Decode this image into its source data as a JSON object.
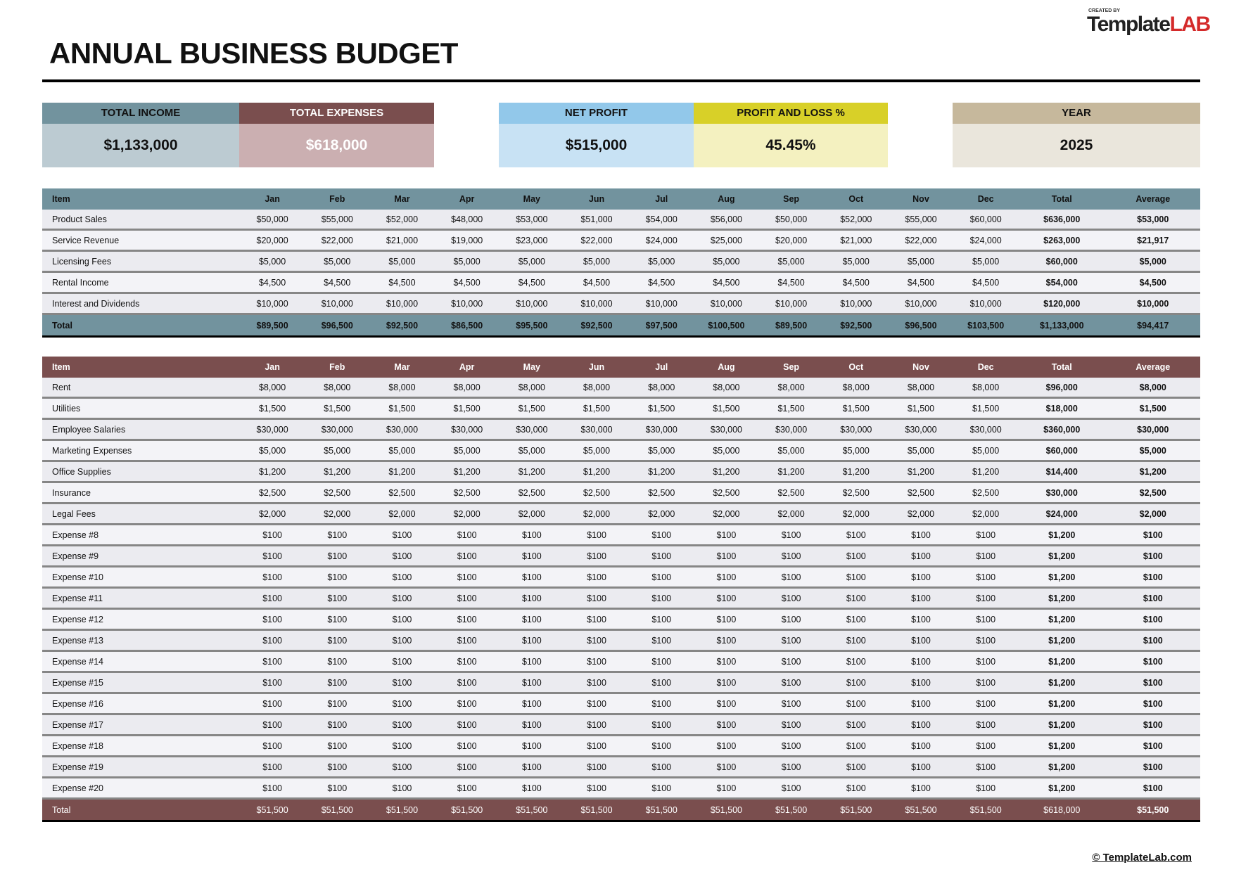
{
  "title": "ANNUAL BUSINESS BUDGET",
  "logo": {
    "created_by": "CREATED BY",
    "text_a": "Template",
    "text_b": "LAB"
  },
  "summary": {
    "total_income": {
      "label": "TOTAL INCOME",
      "value": "$1,133,000"
    },
    "total_expenses": {
      "label": "TOTAL EXPENSES",
      "value": "$618,000"
    },
    "net_profit": {
      "label": "NET PROFIT",
      "value": "$515,000"
    },
    "profit_loss": {
      "label": "PROFIT AND LOSS %",
      "value": "45.45%"
    },
    "year": {
      "label": "YEAR",
      "value": "2025"
    }
  },
  "columns": [
    "Item",
    "Jan",
    "Feb",
    "Mar",
    "Apr",
    "May",
    "Jun",
    "Jul",
    "Aug",
    "Sep",
    "Oct",
    "Nov",
    "Dec",
    "Total",
    "Average"
  ],
  "income": {
    "rows": [
      [
        "Product Sales",
        "$50,000",
        "$55,000",
        "$52,000",
        "$48,000",
        "$53,000",
        "$51,000",
        "$54,000",
        "$56,000",
        "$50,000",
        "$52,000",
        "$55,000",
        "$60,000",
        "$636,000",
        "$53,000"
      ],
      [
        "Service Revenue",
        "$20,000",
        "$22,000",
        "$21,000",
        "$19,000",
        "$23,000",
        "$22,000",
        "$24,000",
        "$25,000",
        "$20,000",
        "$21,000",
        "$22,000",
        "$24,000",
        "$263,000",
        "$21,917"
      ],
      [
        "Licensing Fees",
        "$5,000",
        "$5,000",
        "$5,000",
        "$5,000",
        "$5,000",
        "$5,000",
        "$5,000",
        "$5,000",
        "$5,000",
        "$5,000",
        "$5,000",
        "$5,000",
        "$60,000",
        "$5,000"
      ],
      [
        "Rental Income",
        "$4,500",
        "$4,500",
        "$4,500",
        "$4,500",
        "$4,500",
        "$4,500",
        "$4,500",
        "$4,500",
        "$4,500",
        "$4,500",
        "$4,500",
        "$4,500",
        "$54,000",
        "$4,500"
      ],
      [
        "Interest and Dividends",
        "$10,000",
        "$10,000",
        "$10,000",
        "$10,000",
        "$10,000",
        "$10,000",
        "$10,000",
        "$10,000",
        "$10,000",
        "$10,000",
        "$10,000",
        "$10,000",
        "$120,000",
        "$10,000"
      ]
    ],
    "total": [
      "Total",
      "$89,500",
      "$96,500",
      "$92,500",
      "$86,500",
      "$95,500",
      "$92,500",
      "$97,500",
      "$100,500",
      "$89,500",
      "$92,500",
      "$96,500",
      "$103,500",
      "$1,133,000",
      "$94,417"
    ]
  },
  "expenses": {
    "rows": [
      [
        "Rent",
        "$8,000",
        "$8,000",
        "$8,000",
        "$8,000",
        "$8,000",
        "$8,000",
        "$8,000",
        "$8,000",
        "$8,000",
        "$8,000",
        "$8,000",
        "$8,000",
        "$96,000",
        "$8,000"
      ],
      [
        "Utilities",
        "$1,500",
        "$1,500",
        "$1,500",
        "$1,500",
        "$1,500",
        "$1,500",
        "$1,500",
        "$1,500",
        "$1,500",
        "$1,500",
        "$1,500",
        "$1,500",
        "$18,000",
        "$1,500"
      ],
      [
        "Employee Salaries",
        "$30,000",
        "$30,000",
        "$30,000",
        "$30,000",
        "$30,000",
        "$30,000",
        "$30,000",
        "$30,000",
        "$30,000",
        "$30,000",
        "$30,000",
        "$30,000",
        "$360,000",
        "$30,000"
      ],
      [
        "Marketing Expenses",
        "$5,000",
        "$5,000",
        "$5,000",
        "$5,000",
        "$5,000",
        "$5,000",
        "$5,000",
        "$5,000",
        "$5,000",
        "$5,000",
        "$5,000",
        "$5,000",
        "$60,000",
        "$5,000"
      ],
      [
        "Office Supplies",
        "$1,200",
        "$1,200",
        "$1,200",
        "$1,200",
        "$1,200",
        "$1,200",
        "$1,200",
        "$1,200",
        "$1,200",
        "$1,200",
        "$1,200",
        "$1,200",
        "$14,400",
        "$1,200"
      ],
      [
        "Insurance",
        "$2,500",
        "$2,500",
        "$2,500",
        "$2,500",
        "$2,500",
        "$2,500",
        "$2,500",
        "$2,500",
        "$2,500",
        "$2,500",
        "$2,500",
        "$2,500",
        "$30,000",
        "$2,500"
      ],
      [
        "Legal Fees",
        "$2,000",
        "$2,000",
        "$2,000",
        "$2,000",
        "$2,000",
        "$2,000",
        "$2,000",
        "$2,000",
        "$2,000",
        "$2,000",
        "$2,000",
        "$2,000",
        "$24,000",
        "$2,000"
      ],
      [
        "Expense #8",
        "$100",
        "$100",
        "$100",
        "$100",
        "$100",
        "$100",
        "$100",
        "$100",
        "$100",
        "$100",
        "$100",
        "$100",
        "$1,200",
        "$100"
      ],
      [
        "Expense #9",
        "$100",
        "$100",
        "$100",
        "$100",
        "$100",
        "$100",
        "$100",
        "$100",
        "$100",
        "$100",
        "$100",
        "$100",
        "$1,200",
        "$100"
      ],
      [
        "Expense #10",
        "$100",
        "$100",
        "$100",
        "$100",
        "$100",
        "$100",
        "$100",
        "$100",
        "$100",
        "$100",
        "$100",
        "$100",
        "$1,200",
        "$100"
      ],
      [
        "Expense #11",
        "$100",
        "$100",
        "$100",
        "$100",
        "$100",
        "$100",
        "$100",
        "$100",
        "$100",
        "$100",
        "$100",
        "$100",
        "$1,200",
        "$100"
      ],
      [
        "Expense #12",
        "$100",
        "$100",
        "$100",
        "$100",
        "$100",
        "$100",
        "$100",
        "$100",
        "$100",
        "$100",
        "$100",
        "$100",
        "$1,200",
        "$100"
      ],
      [
        "Expense #13",
        "$100",
        "$100",
        "$100",
        "$100",
        "$100",
        "$100",
        "$100",
        "$100",
        "$100",
        "$100",
        "$100",
        "$100",
        "$1,200",
        "$100"
      ],
      [
        "Expense #14",
        "$100",
        "$100",
        "$100",
        "$100",
        "$100",
        "$100",
        "$100",
        "$100",
        "$100",
        "$100",
        "$100",
        "$100",
        "$1,200",
        "$100"
      ],
      [
        "Expense #15",
        "$100",
        "$100",
        "$100",
        "$100",
        "$100",
        "$100",
        "$100",
        "$100",
        "$100",
        "$100",
        "$100",
        "$100",
        "$1,200",
        "$100"
      ],
      [
        "Expense #16",
        "$100",
        "$100",
        "$100",
        "$100",
        "$100",
        "$100",
        "$100",
        "$100",
        "$100",
        "$100",
        "$100",
        "$100",
        "$1,200",
        "$100"
      ],
      [
        "Expense #17",
        "$100",
        "$100",
        "$100",
        "$100",
        "$100",
        "$100",
        "$100",
        "$100",
        "$100",
        "$100",
        "$100",
        "$100",
        "$1,200",
        "$100"
      ],
      [
        "Expense #18",
        "$100",
        "$100",
        "$100",
        "$100",
        "$100",
        "$100",
        "$100",
        "$100",
        "$100",
        "$100",
        "$100",
        "$100",
        "$1,200",
        "$100"
      ],
      [
        "Expense #19",
        "$100",
        "$100",
        "$100",
        "$100",
        "$100",
        "$100",
        "$100",
        "$100",
        "$100",
        "$100",
        "$100",
        "$100",
        "$1,200",
        "$100"
      ],
      [
        "Expense #20",
        "$100",
        "$100",
        "$100",
        "$100",
        "$100",
        "$100",
        "$100",
        "$100",
        "$100",
        "$100",
        "$100",
        "$100",
        "$1,200",
        "$100"
      ]
    ],
    "total": [
      "Total",
      "$51,500",
      "$51,500",
      "$51,500",
      "$51,500",
      "$51,500",
      "$51,500",
      "$51,500",
      "$51,500",
      "$51,500",
      "$51,500",
      "$51,500",
      "$51,500",
      "$618,000",
      "$51,500"
    ]
  },
  "colors": {
    "income": "#72939e",
    "expenses": "#7a4e4e",
    "net_profit": "#92c8ea",
    "profit_loss": "#d8d028",
    "year": "#c6b89c"
  },
  "footer": "© TemplateLab.com"
}
